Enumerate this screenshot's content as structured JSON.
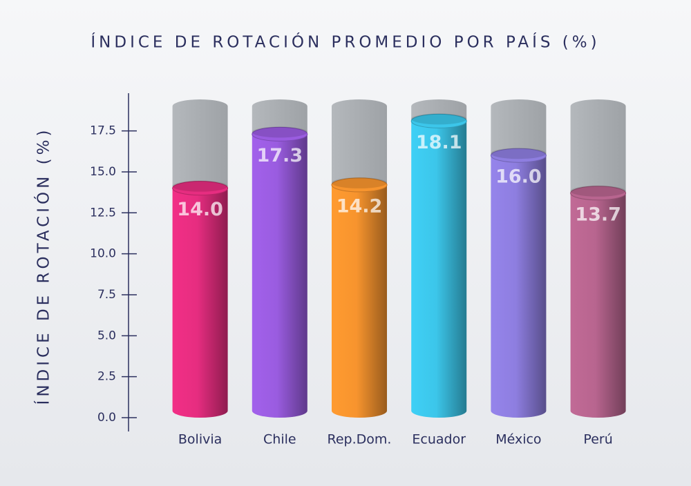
{
  "chart_data": {
    "type": "bar",
    "title": "ÍNDICE DE ROTACIÓN PROMEDIO POR PAÍS (%)",
    "y_label": "ÍNDICE DE ROTACIÓN (%)",
    "categories": [
      "Bolivia",
      "Chile",
      "Rep.Dom.",
      "Ecuador",
      "México",
      "Perú"
    ],
    "values": [
      14.0,
      17.3,
      14.2,
      18.1,
      16.0,
      13.7
    ],
    "value_labels": [
      "14.0",
      "17.3",
      "14.2",
      "18.1",
      "16.0",
      "13.7"
    ],
    "colors": [
      "#e62d80",
      "#9a5ce0",
      "#f7942e",
      "#3cc6ea",
      "#8e7ee0",
      "#b8658f"
    ],
    "ylim": [
      0,
      19
    ],
    "yticks": [
      {
        "value": 0,
        "label": "0.0"
      },
      2.5,
      {
        "value": 5,
        "label": "5.0"
      },
      7.5,
      {
        "value": 10,
        "label": "10.0"
      },
      12.5,
      {
        "value": 15,
        "label": "15.0"
      },
      17.5
    ]
  }
}
